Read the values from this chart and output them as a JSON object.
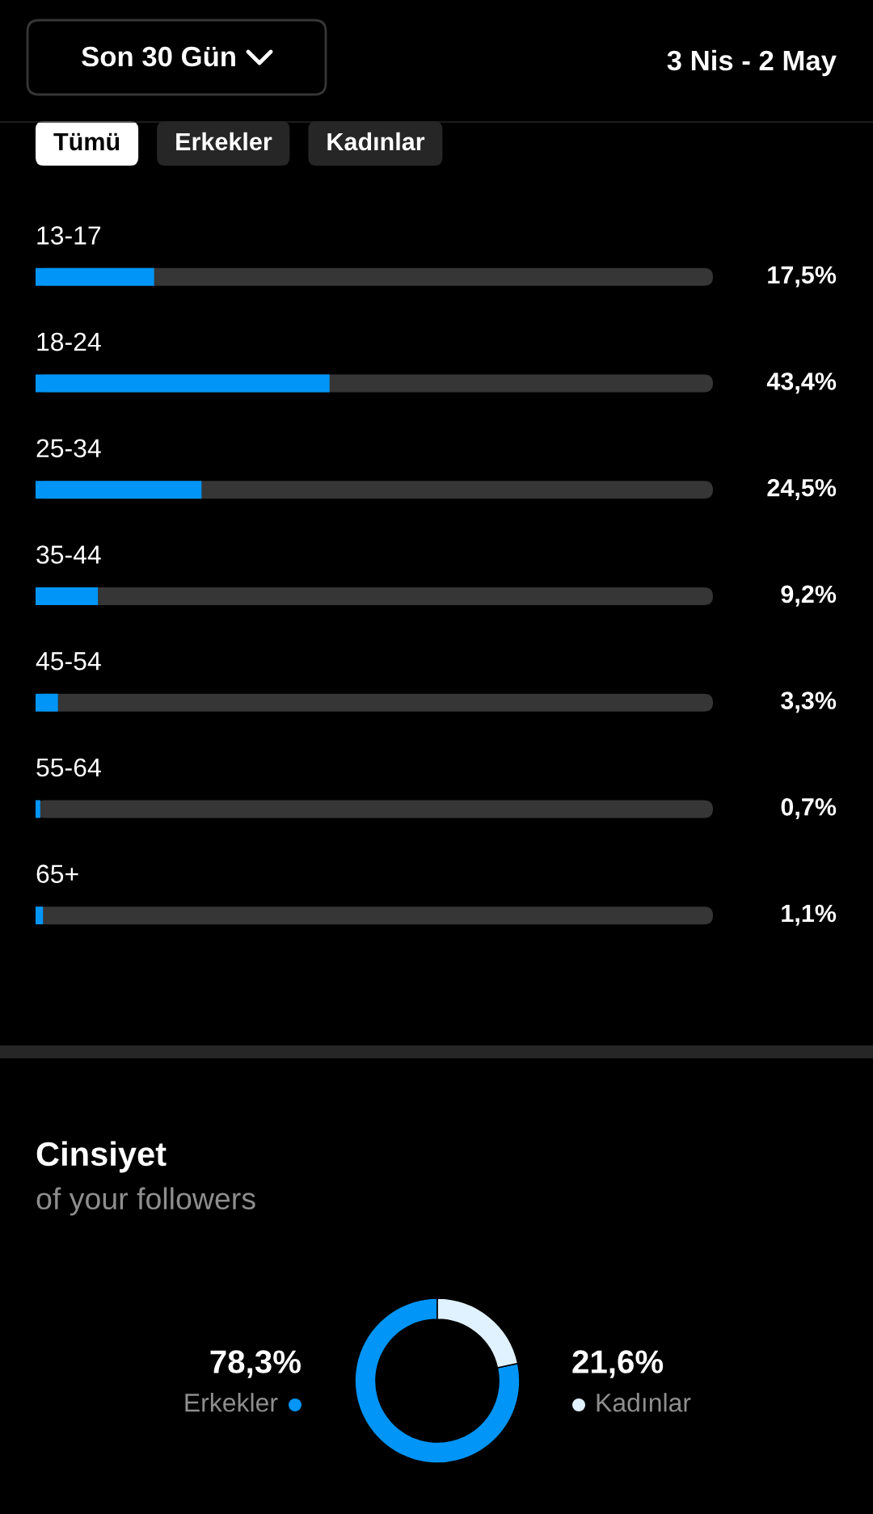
{
  "chart_data": [
    {
      "type": "other",
      "annotations": [
        "Son 30 Gün",
        "3 Nis - 2 May",
        "Tümü",
        "Erkekler",
        "Kadınlar"
      ]
    },
    {
      "type": "bar",
      "orientation": "horizontal",
      "categories": [
        "13-17",
        "18-24",
        "25-34",
        "35-44",
        "45-54",
        "55-64",
        "65+"
      ],
      "values": [
        17.5,
        43.4,
        24.5,
        9.2,
        3.3,
        0.7,
        1.1
      ],
      "value_labels": [
        "17,5%",
        "43,4%",
        "24,5%",
        "9,2%",
        "3,3%",
        "0,7%",
        "1,1%"
      ],
      "color": "#0095f6",
      "xlim": [
        0,
        100
      ],
      "tick_labels": "y"
    },
    {
      "type": "donut",
      "title": "Cinsiyet",
      "subtitle": "of your followers",
      "categories": [
        "Erkekler",
        "Kadınlar"
      ],
      "values": [
        78.3,
        21.6
      ],
      "colors": [
        "#0095f6",
        "#e0f1ff"
      ],
      "value_labels": [
        "78,3%",
        "21,6%"
      ]
    }
  ]
}
